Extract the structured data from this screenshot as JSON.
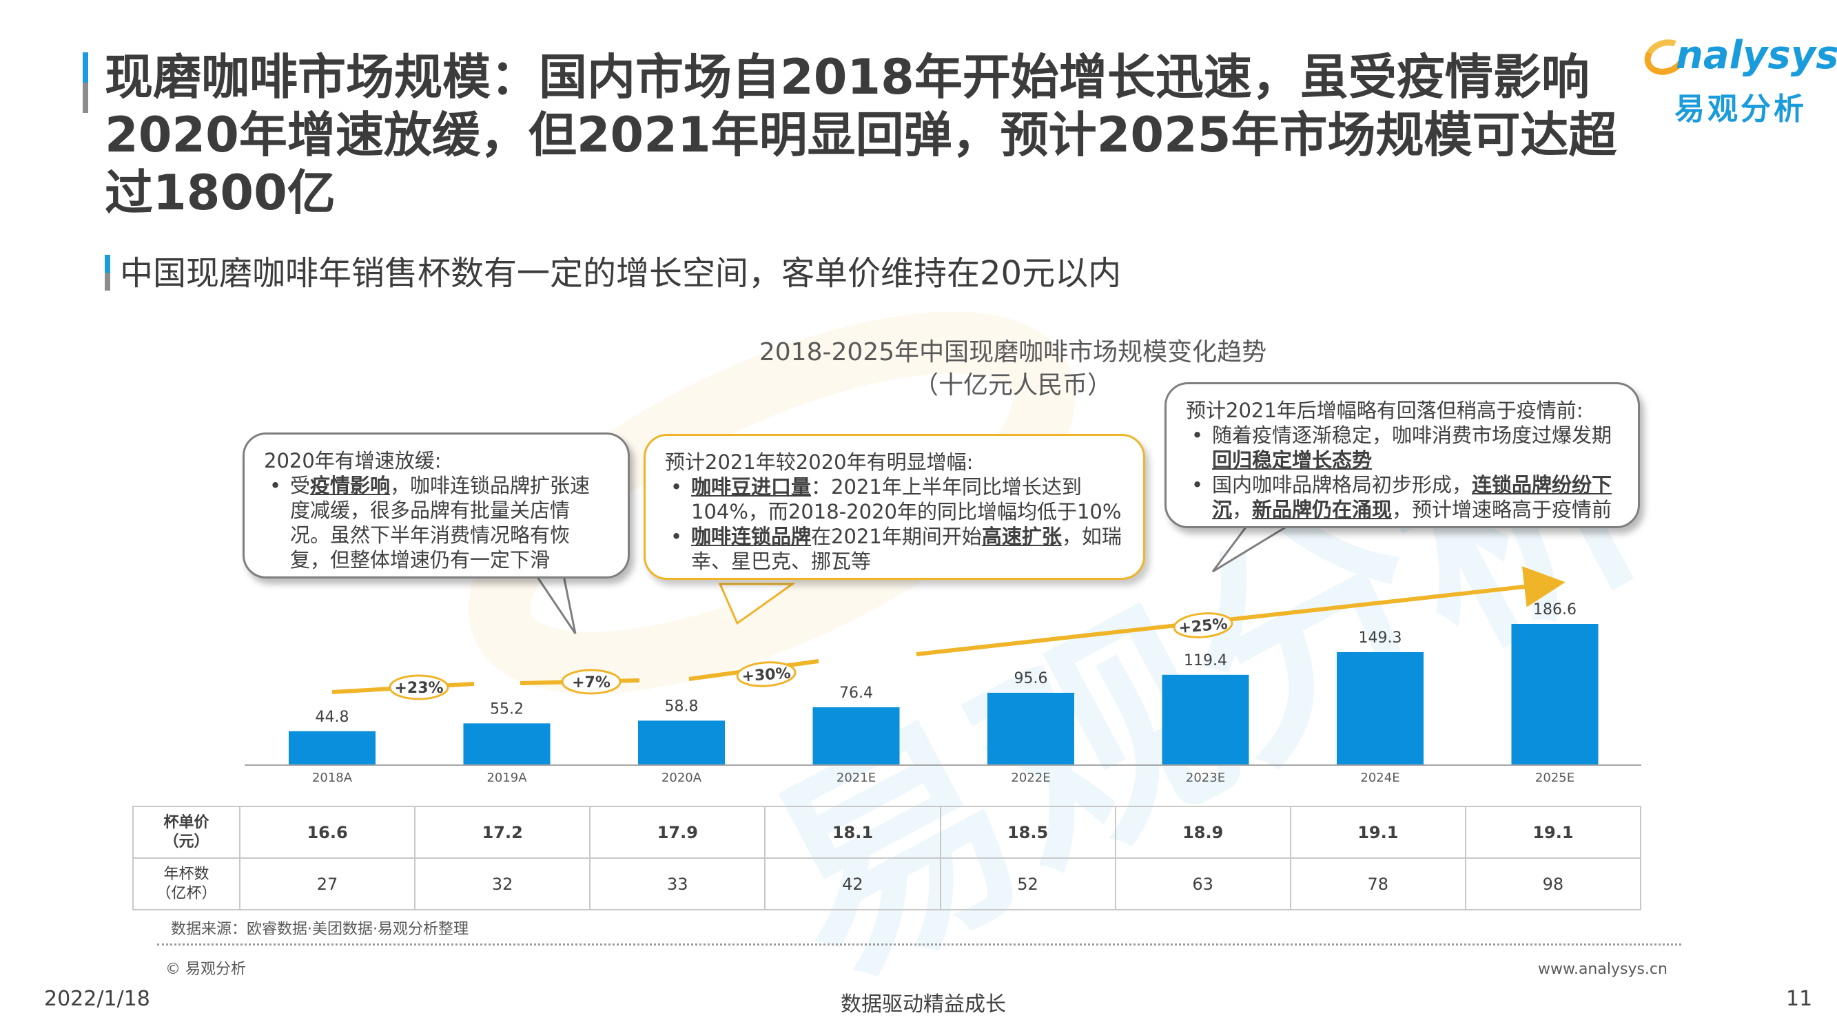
{
  "title": "现磨咖啡市场规模：国内市场自2018年开始增长迅速，虽受疫情影响2020年增速放缓，但2021年明显回弹，预计2025年市场规模可达超过1800亿",
  "subtitle": "中国现磨咖啡年销售杯数有一定的增长空间，客单价维持在20元以内",
  "logo": {
    "en": "nalysys",
    "cn": "易观分析"
  },
  "watermark": "易观分析",
  "callouts": {
    "c2020": {
      "head": "2020年有增速放缓:",
      "line1_pre": "受",
      "line1_bold": "疫情影响",
      "line1_post": "，咖啡连锁品牌扩张速度减缓，很多品牌有批量关店情况。虽然下半年消费情况略有恢复，但整体增速仍有一定下滑"
    },
    "c2021": {
      "head": "预计2021年较2020年有明显增幅:",
      "b1_bold": "咖啡豆进口量",
      "b1_post": "：2021年上半年同比增长达到104%，而2018-2020年的同比增幅均低于10%",
      "b2_bold": "咖啡连锁品牌",
      "b2_mid": "在2021年期间开始",
      "b2_bold2": "高速扩张",
      "b2_post": "，如瑞幸、星巴克、挪瓦等"
    },
    "cAfter": {
      "head": "预计2021年后增幅略有回落但稍高于疫情前:",
      "b1_pre": "随着疫情逐渐稳定，咖啡消费市场度过爆发期",
      "b1_bold": "回归稳定增长态势",
      "b2_pre": "国内咖啡品牌格局初步形成，",
      "b2_bold": "连锁品牌纷纷下沉",
      "b2_mid": "，",
      "b2_bold2": "新品牌仍在涌现",
      "b2_post": "，预计增速略高于疫情前"
    }
  },
  "table": {
    "row1_label": "杯单价（元）",
    "row1_label_a": "杯单价",
    "row1_label_b": "（元）",
    "row1": [
      "16.6",
      "17.2",
      "17.9",
      "18.1",
      "18.5",
      "18.9",
      "19.1",
      "19.1"
    ],
    "row2_label_a": "年杯数",
    "row2_label_b": "（亿杯）",
    "row2": [
      "27",
      "32",
      "33",
      "42",
      "52",
      "63",
      "78",
      "98"
    ]
  },
  "footer": {
    "source": "数据来源：欧睿数据·美团数据·易观分析整理",
    "copyright": "© 易观分析",
    "website": "www.analysys.cn",
    "date": "2022/1/18",
    "slogan": "数据驱动精益成长",
    "page": "11"
  },
  "colors": {
    "bar": "#0a8fdc",
    "trend": "#f0b428",
    "callout_gold": "#f0b428",
    "callout_grey": "#7f7f7f"
  },
  "chart_data": {
    "type": "bar",
    "title": "2018-2025年中国现磨咖啡市场规模变化趋势",
    "subtitle": "（十亿元人民币）",
    "categories": [
      "2018A",
      "2019A",
      "2020A",
      "2021E",
      "2022E",
      "2023E",
      "2024E",
      "2025E"
    ],
    "values": [
      44.8,
      55.2,
      58.8,
      76.4,
      95.6,
      119.4,
      149.3,
      186.6
    ],
    "ylim": [
      0,
      186.6
    ],
    "growth_labels": [
      "+23%",
      "+7%",
      "+30%",
      "+25%"
    ],
    "legend": "none",
    "grid": false
  }
}
